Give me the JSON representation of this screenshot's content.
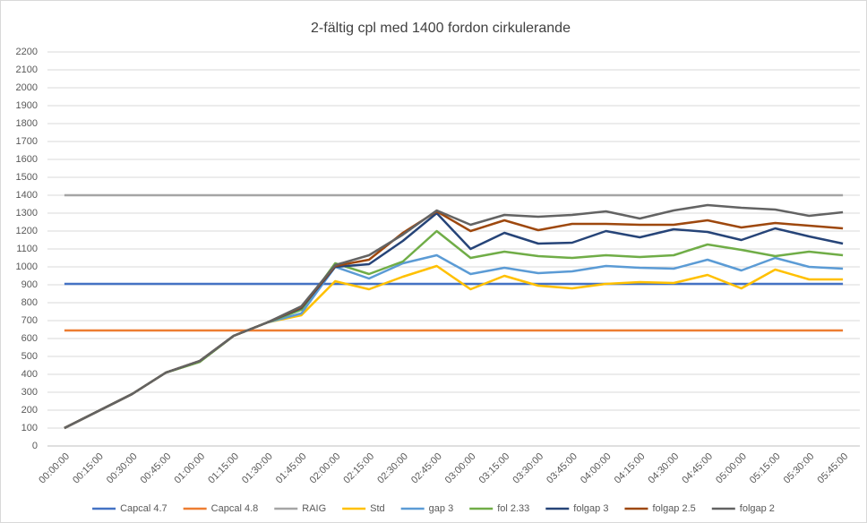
{
  "chart_data": {
    "type": "line",
    "title": "2-fältig cpl med 1400 fordon cirkulerande",
    "categories": [
      "00:00:00",
      "00:15:00",
      "00:30:00",
      "00:45:00",
      "01:00:00",
      "01:15:00",
      "01:30:00",
      "01:45:00",
      "02:00:00",
      "02:15:00",
      "02:30:00",
      "02:45:00",
      "03:00:00",
      "03:15:00",
      "03:30:00",
      "03:45:00",
      "04:00:00",
      "04:15:00",
      "04:30:00",
      "04:45:00",
      "05:00:00",
      "05:15:00",
      "05:30:00",
      "05:45:00"
    ],
    "series": [
      {
        "name": "Capcal 4.7",
        "color": "#4472c4",
        "values": [
          905,
          905,
          905,
          905,
          905,
          905,
          905,
          905,
          905,
          905,
          905,
          905,
          905,
          905,
          905,
          905,
          905,
          905,
          905,
          905,
          905,
          905,
          905,
          905
        ]
      },
      {
        "name": "Capcal 4.8",
        "color": "#ed7d31",
        "values": [
          645,
          645,
          645,
          645,
          645,
          645,
          645,
          645,
          645,
          645,
          645,
          645,
          645,
          645,
          645,
          645,
          645,
          645,
          645,
          645,
          645,
          645,
          645,
          645
        ]
      },
      {
        "name": "RAIG",
        "color": "#a5a5a5",
        "values": [
          1400,
          1400,
          1400,
          1400,
          1400,
          1400,
          1400,
          1400,
          1400,
          1400,
          1400,
          1400,
          1400,
          1400,
          1400,
          1400,
          1400,
          1400,
          1400,
          1400,
          1400,
          1400,
          1400,
          1400
        ]
      },
      {
        "name": "Std",
        "color": "#ffc000",
        "values": [
          100,
          195,
          290,
          410,
          470,
          615,
          690,
          730,
          920,
          875,
          945,
          1005,
          875,
          950,
          895,
          880,
          905,
          915,
          910,
          955,
          880,
          985,
          930,
          930
        ]
      },
      {
        "name": "gap 3",
        "color": "#5b9bd5",
        "values": [
          100,
          195,
          290,
          410,
          470,
          615,
          690,
          740,
          1000,
          935,
          1020,
          1065,
          960,
          995,
          965,
          975,
          1005,
          995,
          990,
          1040,
          980,
          1050,
          1000,
          990
        ]
      },
      {
        "name": "fol 2.33",
        "color": "#70ad47",
        "values": [
          100,
          195,
          290,
          410,
          470,
          615,
          690,
          760,
          1020,
          960,
          1030,
          1200,
          1050,
          1085,
          1060,
          1050,
          1065,
          1055,
          1065,
          1125,
          1095,
          1060,
          1085,
          1065
        ]
      },
      {
        "name": "folgap 3",
        "color": "#264478",
        "values": [
          100,
          195,
          290,
          410,
          475,
          615,
          690,
          770,
          1000,
          1015,
          1145,
          1300,
          1100,
          1190,
          1130,
          1135,
          1200,
          1165,
          1210,
          1195,
          1150,
          1215,
          1170,
          1130
        ]
      },
      {
        "name": "folgap 2.5",
        "color": "#9e480e",
        "values": [
          100,
          195,
          290,
          410,
          475,
          615,
          690,
          775,
          1005,
          1040,
          1190,
          1310,
          1200,
          1260,
          1205,
          1240,
          1240,
          1235,
          1235,
          1260,
          1220,
          1245,
          1230,
          1215
        ]
      },
      {
        "name": "folgap 2",
        "color": "#636363",
        "values": [
          100,
          195,
          290,
          410,
          475,
          615,
          690,
          780,
          1010,
          1065,
          1180,
          1315,
          1235,
          1290,
          1280,
          1290,
          1310,
          1270,
          1315,
          1345,
          1330,
          1320,
          1285,
          1305
        ]
      }
    ],
    "ylim": [
      0,
      2200
    ],
    "yticks": [
      0,
      100,
      200,
      300,
      400,
      500,
      600,
      700,
      800,
      900,
      1000,
      1100,
      1200,
      1300,
      1400,
      1500,
      1600,
      1700,
      1800,
      1900,
      2000,
      2100,
      2200
    ],
    "grid": true,
    "legend": "bottom"
  }
}
